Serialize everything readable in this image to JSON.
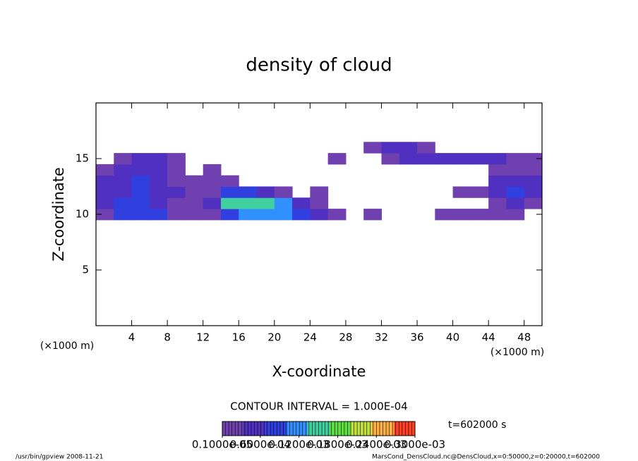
{
  "chart_data": {
    "type": "contour",
    "title": "density of cloud",
    "x_label": "X-coordinate",
    "y_label": "Z-coordinate",
    "x_unit": "(×1000 m)",
    "y_unit": "(×1000 m)",
    "x": [
      1,
      3,
      5,
      7,
      9,
      11,
      13,
      15,
      17,
      19,
      21,
      23,
      25,
      27,
      29,
      31,
      33,
      35,
      37,
      39,
      41,
      43,
      45,
      47,
      49
    ],
    "y": [
      10,
      11,
      12,
      13,
      14,
      15,
      16
    ],
    "values": [
      [
        3e-05,
        8e-05,
        9e-05,
        7e-05,
        3e-05,
        2e-05,
        3e-05,
        0.0001,
        0.00012,
        0.00012,
        0.00011,
        0.0001,
        6e-05,
        2e-05,
        null,
        2e-05,
        null,
        null,
        null,
        3e-05,
        3e-05,
        2e-05,
        2e-05,
        2e-05,
        null
      ],
      [
        5e-05,
        8e-05,
        8e-05,
        6e-05,
        3e-05,
        3e-05,
        4e-05,
        0.00014,
        0.00016,
        0.00015,
        0.00012,
        6e-05,
        3e-05,
        null,
        null,
        null,
        null,
        null,
        null,
        null,
        null,
        null,
        3e-05,
        4e-05,
        3e-05
      ],
      [
        4e-05,
        5e-05,
        8e-05,
        6e-05,
        4e-05,
        3e-05,
        3e-05,
        8e-05,
        9e-05,
        5e-05,
        3e-05,
        null,
        2e-05,
        null,
        null,
        null,
        null,
        null,
        null,
        null,
        2e-05,
        2e-05,
        5e-05,
        8e-05,
        5e-05
      ],
      [
        4e-05,
        6e-05,
        0.0001,
        6e-05,
        3e-05,
        3e-05,
        2e-05,
        3e-05,
        null,
        null,
        null,
        null,
        null,
        null,
        null,
        null,
        null,
        null,
        null,
        null,
        null,
        null,
        4e-05,
        6e-05,
        4e-05
      ],
      [
        3e-05,
        5e-05,
        6e-05,
        5e-05,
        3e-05,
        null,
        2e-05,
        null,
        null,
        null,
        null,
        null,
        null,
        null,
        null,
        null,
        null,
        null,
        null,
        null,
        null,
        null,
        3e-05,
        3e-05,
        3e-05
      ],
      [
        null,
        3e-05,
        4e-05,
        4e-05,
        2e-05,
        null,
        null,
        null,
        null,
        null,
        null,
        null,
        null,
        2e-05,
        null,
        null,
        3e-05,
        4e-05,
        4e-05,
        4e-05,
        4e-05,
        4e-05,
        4e-05,
        3e-05,
        2e-05
      ],
      [
        null,
        null,
        null,
        null,
        null,
        null,
        null,
        null,
        null,
        null,
        null,
        null,
        null,
        null,
        null,
        3e-05,
        4e-05,
        4e-05,
        3e-05,
        null,
        null,
        null,
        null,
        null,
        null
      ]
    ],
    "xlim": [
      0,
      50
    ],
    "xticks": [
      4,
      8,
      12,
      16,
      20,
      24,
      28,
      32,
      36,
      40,
      44,
      48
    ],
    "ylim": [
      0,
      20
    ],
    "yticks": [
      5,
      10,
      15
    ],
    "colorbar": {
      "clim": [
        1e-06,
        0.0003
      ],
      "colors": [
        "#7040b0",
        "#5030c0",
        "#3040e0",
        "#3090ff",
        "#40d0a0",
        "#60e040",
        "#c0e040",
        "#ffb040",
        "#ff4020"
      ],
      "ticks": [
        {
          "value": 1e-06,
          "label": "0.1000e-05"
        },
        {
          "value": 6e-05,
          "label": "0.6000e-04"
        },
        {
          "value": 0.00012,
          "label": "0.1200e-03"
        },
        {
          "value": 0.00018,
          "label": "0.1800e-03"
        },
        {
          "value": 0.00024,
          "label": "0.2400e-03"
        },
        {
          "value": 0.0003,
          "label": "0.3000e-03"
        }
      ]
    },
    "contour_interval": "CONTOUR INTERVAL = 1.000E-04",
    "time_label": "t=602000 s",
    "footer_left": "/usr/bin/gpview  2008-11-21",
    "footer_right": "MarsCond_DensCloud.nc@DensCloud,x=0:50000,z=0:20000,t=602000"
  }
}
